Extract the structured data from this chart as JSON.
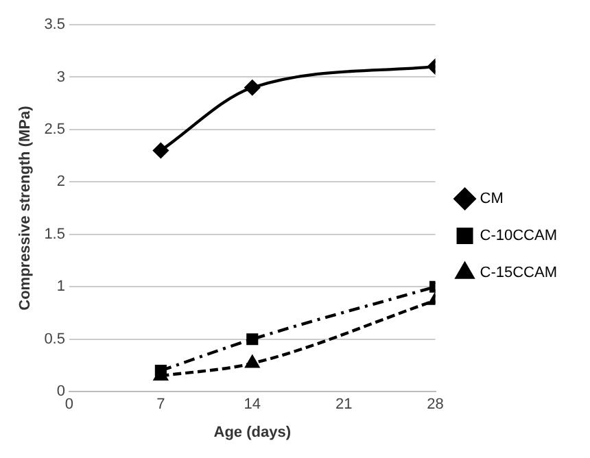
{
  "chart_data": {
    "type": "line",
    "xlabel": "Age (days)",
    "ylabel": "Compressive strength (MPa)",
    "xlim": [
      0,
      28
    ],
    "xticks": [
      0,
      7,
      14,
      21,
      28
    ],
    "ylim": [
      0,
      3.5
    ],
    "yticks": [
      0,
      0.5,
      1,
      1.5,
      2,
      2.5,
      3,
      3.5
    ],
    "grid": "y",
    "legend": "right",
    "series": [
      {
        "name": "CM",
        "color": "#000000",
        "x": [
          7,
          14,
          28
        ],
        "values": [
          2.3,
          2.9,
          3.1
        ],
        "marker": "diamond",
        "line_style": "solid"
      },
      {
        "name": "C-10CCAM",
        "color": "#000000",
        "x": [
          7,
          14,
          28
        ],
        "values": [
          0.2,
          0.5,
          1.0
        ],
        "marker": "square",
        "line_style": "dashdot"
      },
      {
        "name": "C-15CCAM",
        "color": "#000000",
        "x": [
          7,
          14,
          28
        ],
        "values": [
          0.15,
          0.27,
          0.87
        ],
        "marker": "triangle",
        "line_style": "dashed"
      }
    ]
  }
}
